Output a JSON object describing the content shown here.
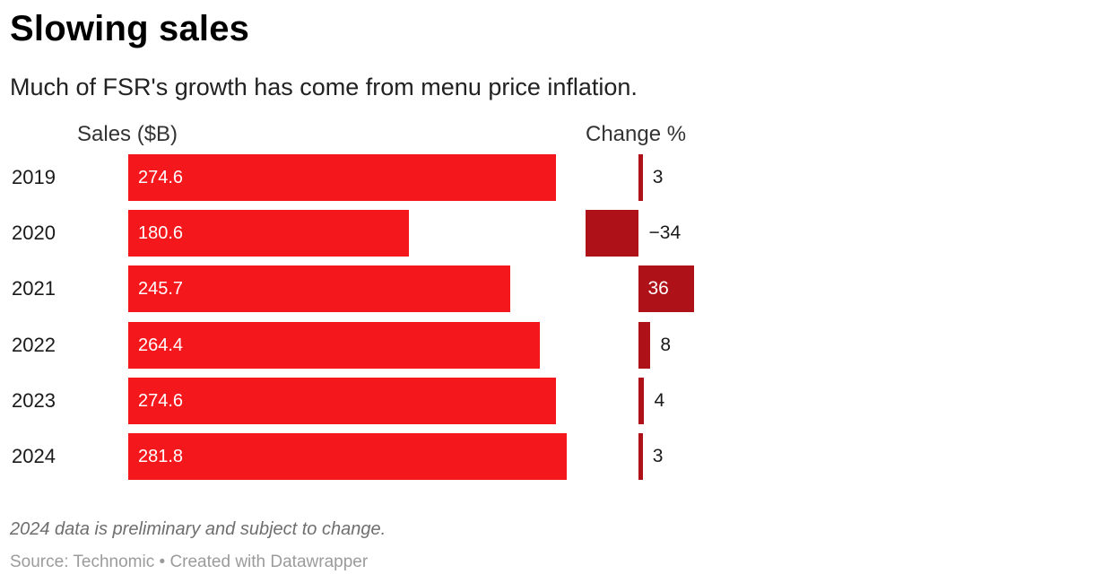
{
  "header": {
    "title": "Slowing sales",
    "subtitle": "Much of FSR's growth has come from menu price inflation."
  },
  "columns": {
    "sales_label": "Sales ($B)",
    "change_label": "Change %"
  },
  "footer": {
    "note": "2024 data is preliminary and subject to change.",
    "source": "Source: Technomic • Created with Datawrapper"
  },
  "colors": {
    "sales_bar": "#f4171c",
    "change_bar": "#ae1118",
    "label_on_bar": "#ffffff",
    "label_text": "#1a1a1a"
  },
  "chart_data": {
    "type": "bar",
    "orientation": "horizontal",
    "categories": [
      "2019",
      "2020",
      "2021",
      "2022",
      "2023",
      "2024"
    ],
    "series": [
      {
        "name": "Sales ($B)",
        "values": [
          274.6,
          180.6,
          245.7,
          264.4,
          274.6,
          281.8
        ]
      },
      {
        "name": "Change %",
        "values": [
          3,
          -34,
          36,
          8,
          4,
          3
        ]
      }
    ],
    "sales_display": [
      "274.6",
      "180.6",
      "245.7",
      "264.4",
      "274.6",
      "281.8"
    ],
    "change_display": [
      "3",
      "−34",
      "36",
      "8",
      "4",
      "3"
    ],
    "xlim_sales": [
      0,
      281.8
    ],
    "xlim_change": [
      -34,
      36
    ],
    "grid": false,
    "legend": "column-headers"
  }
}
